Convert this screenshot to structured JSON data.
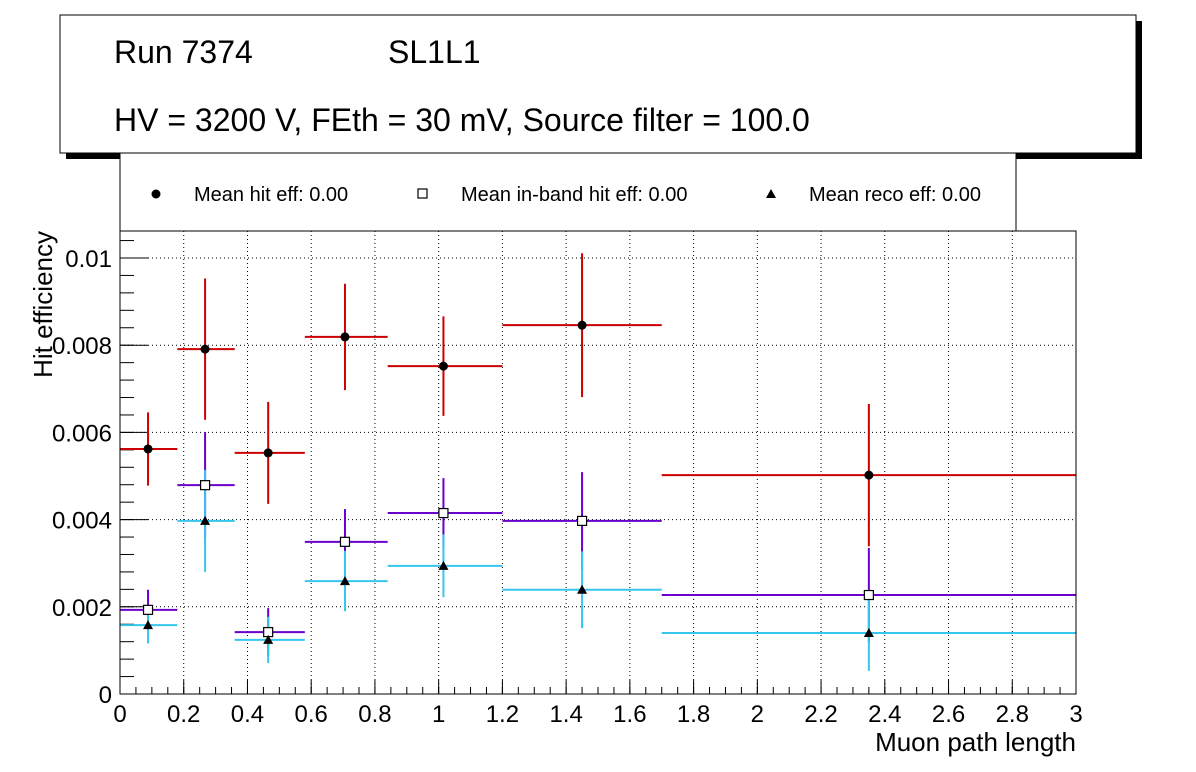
{
  "title": {
    "run": "Run 7374",
    "layer": "SL1L1",
    "conditions": "HV = 3200 V, FEth = 30 mV, Source filter = 100.0"
  },
  "chart_data": {
    "type": "scatter",
    "xlabel": "Muon path length",
    "ylabel": "Hit efficiency",
    "xlim": [
      0,
      3
    ],
    "ylim": [
      0,
      0.0106
    ],
    "grid": true,
    "legend_placement": "top",
    "x_ticks": [
      "0",
      "0.2",
      "0.4",
      "0.6",
      "0.8",
      "1",
      "1.2",
      "1.4",
      "1.6",
      "1.8",
      "2",
      "2.2",
      "2.4",
      "2.6",
      "2.8",
      "3"
    ],
    "y_ticks": [
      "0",
      "0.002",
      "0.004",
      "0.006",
      "0.008",
      "0.01"
    ],
    "bins": [
      [
        0,
        0.18
      ],
      [
        0.18,
        0.36
      ],
      [
        0.36,
        0.58
      ],
      [
        0.58,
        0.84
      ],
      [
        0.84,
        1.2
      ],
      [
        1.2,
        1.7
      ],
      [
        1.7,
        3.0
      ]
    ],
    "x": [
      0.088,
      0.267,
      0.465,
      0.706,
      1.015,
      1.45,
      2.35
    ],
    "series": [
      {
        "name": "Mean hit  eff: 0.00",
        "marker": "circle",
        "color": "#cc0000",
        "values": [
          0.00562,
          0.00791,
          0.00553,
          0.00819,
          0.00752,
          0.00846,
          0.00502
        ],
        "errors": [
          0.00084,
          0.00162,
          0.00117,
          0.00122,
          0.00114,
          0.00165,
          0.00163
        ]
      },
      {
        "name": "Mean in-band hit eff: 0.00",
        "marker": "open-square",
        "color": "#6a00cc",
        "values": [
          0.00193,
          0.00479,
          0.00142,
          0.00349,
          0.00415,
          0.00397,
          0.00227
        ],
        "errors": [
          0.00046,
          0.00122,
          0.00055,
          0.00075,
          0.0008,
          0.00112,
          0.00108
        ]
      },
      {
        "name": "Mean reco eff: 0.00",
        "marker": "triangle",
        "color": "#36c6ee",
        "values": [
          0.00158,
          0.00397,
          0.00124,
          0.00259,
          0.00294,
          0.00239,
          0.0014
        ],
        "errors": [
          0.00042,
          0.00117,
          0.00053,
          0.00069,
          0.00072,
          0.00088,
          0.00087
        ]
      }
    ]
  }
}
